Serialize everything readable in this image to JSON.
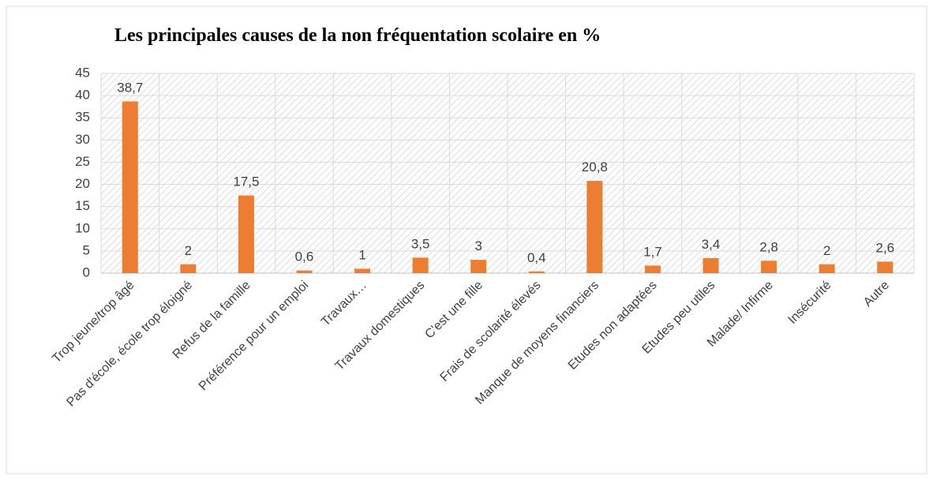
{
  "chart_data": {
    "type": "bar",
    "title": "Les principales causes de la non fréquentation scolaire en %",
    "categories": [
      "Trop jeune/trop âgé",
      "Pas d'école, école trop éloigné",
      "Refus de la famille",
      "Préférence pour un emploi",
      "Travaux…",
      "Travaux domestiques",
      "C'est une fille",
      "Frais de scolarité élevés",
      "Manque de moyens financiers",
      "Etudes non adaptées",
      "Etudes peu utiles",
      "Malade/ Infirme",
      "Insécurité",
      "Autre"
    ],
    "values": [
      38.7,
      2,
      17.5,
      0.6,
      1,
      3.5,
      3,
      0.4,
      20.8,
      1.7,
      3.4,
      2.8,
      2,
      2.6
    ],
    "value_labels": [
      "38,7",
      "2",
      "17,5",
      "0,6",
      "1",
      "3,5",
      "3",
      "0,4",
      "20,8",
      "1,7",
      "3,4",
      "2,8",
      "2",
      "2,6"
    ],
    "color": "#ed7d31",
    "ylim": [
      0,
      45
    ],
    "yticks": [
      0,
      5,
      10,
      15,
      20,
      25,
      30,
      35,
      40,
      45
    ],
    "grid": true
  }
}
